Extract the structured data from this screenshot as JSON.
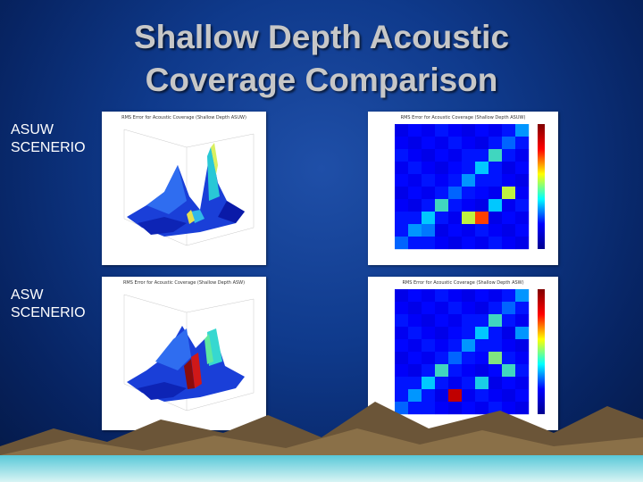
{
  "slide": {
    "title_line1": "Shallow Depth Acoustic",
    "title_line2": "Coverage Comparison"
  },
  "rows": [
    {
      "label_line1": "ASUW",
      "label_line2": "SCENERIO",
      "surface_title": "RMS Error for Acoustic Coverage (Shallow Depth ASUW)",
      "heatmap_title": "RMS Error for Acoustic Coverage (Shallow Depth ASUW)"
    },
    {
      "label_line1": "ASW",
      "label_line2": "SCENERIO",
      "surface_title": "RMS Error for Acoustic Coverage (Shallow Depth ASW)",
      "heatmap_title": "RMS Error for Acoustic Coverage (Shallow Depth ASW)"
    }
  ],
  "colors": {
    "background": "#0f3a8c",
    "title_text": "#c7c7c7",
    "label_text": "#ffffff",
    "colormap": "jet"
  }
}
